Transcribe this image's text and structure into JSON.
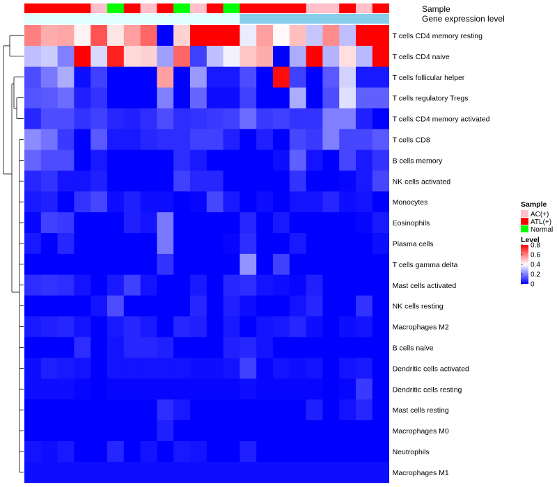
{
  "chart_data": {
    "type": "heatmap",
    "title": "",
    "value_range": [
      0,
      0.8
    ],
    "annotation_tracks": [
      {
        "name": "Sample",
        "values": [
          "ATL(+)",
          "ATL(+)",
          "ATL(+)",
          "ATL(+)",
          "AC(+)",
          "Normal",
          "ATL(+)",
          "AC(+)",
          "ATL(+)",
          "Normal",
          "AC(+)",
          "ATL(+)",
          "Normal",
          "ATL(+)",
          "ATL(+)",
          "ATL(+)",
          "ATL(+)",
          "AC(+)",
          "AC(+)",
          "ATL(+)",
          "AC(+)",
          "ATL(+)"
        ]
      },
      {
        "name": "Gene expression level",
        "values": [
          "low",
          "low",
          "low",
          "low",
          "low",
          "low",
          "low",
          "low",
          "low",
          "low",
          "low",
          "low",
          "low",
          "high",
          "high",
          "high",
          "high",
          "high",
          "high",
          "high",
          "high",
          "high"
        ]
      }
    ],
    "track_colors": {
      "Sample": {
        "AC(+)": "#FFC0CB",
        "ATL(+)": "#FF0000",
        "Normal": "#00FF00"
      },
      "Gene expression level": {
        "low": "#E0FFFF",
        "high": "#87CEEB"
      }
    },
    "rows": [
      "T cells CD4 memory resting",
      "T cells CD4 naive",
      "T cells follicular helper",
      "T cells regulatory  Tregs",
      "T cells CD4 memory activated",
      "T cells CD8",
      "B cells memory",
      "NK cells activated",
      "Monocytes",
      "Eosinophils",
      "Plasma cells",
      "T cells gamma delta",
      "Mast cells activated",
      "NK cells resting",
      "Macrophages M2",
      "B cells naive",
      "Dendritic cells activated",
      "Dendritic cells resting",
      "Mast cells resting",
      "Macrophages M0",
      "Neutrophils",
      "Macrophages M1"
    ],
    "values": [
      [
        0.6,
        0.53,
        0.54,
        0.42,
        0.67,
        0.44,
        0.55,
        0.64,
        0.0,
        0.47,
        0.8,
        0.8,
        0.8,
        0.37,
        0.55,
        0.41,
        0.5,
        0.31,
        0.58,
        0.3,
        0.8,
        0.8
      ],
      [
        0.3,
        0.32,
        0.2,
        0.8,
        0.34,
        0.75,
        0.46,
        0.47,
        0.25,
        0.64,
        0.1,
        0.3,
        0.38,
        0.49,
        0.53,
        0.0,
        0.27,
        0.8,
        0.28,
        0.45,
        0.29,
        0.8
      ],
      [
        0.12,
        0.19,
        0.27,
        0.02,
        0.1,
        0.0,
        0.0,
        0.0,
        0.55,
        0.0,
        0.24,
        0.04,
        0.04,
        0.12,
        0.0,
        0.78,
        0.1,
        0.0,
        0.14,
        0.33,
        0.04,
        0.04
      ],
      [
        0.13,
        0.14,
        0.17,
        0.05,
        0.08,
        0.0,
        0.0,
        0.0,
        0.2,
        0.0,
        0.16,
        0.02,
        0.02,
        0.1,
        0.0,
        0.0,
        0.27,
        0.0,
        0.12,
        0.35,
        0.15,
        0.15
      ],
      [
        0.06,
        0.12,
        0.12,
        0.08,
        0.1,
        0.06,
        0.05,
        0.07,
        0.12,
        0.07,
        0.08,
        0.09,
        0.1,
        0.17,
        0.09,
        0.1,
        0.08,
        0.08,
        0.2,
        0.2,
        0.05,
        0.0
      ],
      [
        0.22,
        0.18,
        0.09,
        0.0,
        0.14,
        0.04,
        0.04,
        0.06,
        0.07,
        0.07,
        0.1,
        0.1,
        0.05,
        0.0,
        0.05,
        0.0,
        0.11,
        0.09,
        0.2,
        0.11,
        0.11,
        0.14
      ],
      [
        0.16,
        0.12,
        0.12,
        0.0,
        0.04,
        0.0,
        0.0,
        0.0,
        0.0,
        0.07,
        0.04,
        0.0,
        0.0,
        0.0,
        0.0,
        0.02,
        0.15,
        0.03,
        0.0,
        0.11,
        0.04,
        0.08
      ],
      [
        0.06,
        0.08,
        0.03,
        0.03,
        0.05,
        0.0,
        0.0,
        0.0,
        0.0,
        0.1,
        0.06,
        0.06,
        0.0,
        0.0,
        0.0,
        0.0,
        0.08,
        0.0,
        0.0,
        0.01,
        0.04,
        0.11
      ],
      [
        0.04,
        0.05,
        0.0,
        0.08,
        0.11,
        0.02,
        0.05,
        0.02,
        0.02,
        0.0,
        0.01,
        0.11,
        0.04,
        0.0,
        0.02,
        0.0,
        0.03,
        0.03,
        0.06,
        0.02,
        0.03,
        0.0
      ],
      [
        0.01,
        0.1,
        0.09,
        0.0,
        0.0,
        0.0,
        0.05,
        0.03,
        0.19,
        0.0,
        0.0,
        0.0,
        0.0,
        0.06,
        0.0,
        0.04,
        0.0,
        0.0,
        0.0,
        0.0,
        0.01,
        0.04
      ],
      [
        0.04,
        0.0,
        0.06,
        0.0,
        0.0,
        0.0,
        0.0,
        0.0,
        0.19,
        0.0,
        0.0,
        0.0,
        0.01,
        0.07,
        0.0,
        0.0,
        0.04,
        0.0,
        0.0,
        0.0,
        0.0,
        0.02
      ],
      [
        0.0,
        0.0,
        0.0,
        0.0,
        0.0,
        0.0,
        0.0,
        0.0,
        0.08,
        0.0,
        0.0,
        0.0,
        0.0,
        0.23,
        0.0,
        0.1,
        0.0,
        0.0,
        0.0,
        0.0,
        0.0,
        0.0
      ],
      [
        0.07,
        0.08,
        0.07,
        0.03,
        0.0,
        0.04,
        0.1,
        0.03,
        0.0,
        0.0,
        0.04,
        0.0,
        0.06,
        0.07,
        0.03,
        0.02,
        0.01,
        0.05,
        0.0,
        0.0,
        0.0,
        0.0
      ],
      [
        0.0,
        0.0,
        0.0,
        0.0,
        0.03,
        0.12,
        0.0,
        0.0,
        0.0,
        0.0,
        0.06,
        0.0,
        0.05,
        0.02,
        0.0,
        0.0,
        0.03,
        0.06,
        0.0,
        0.0,
        0.08,
        0.0
      ],
      [
        0.04,
        0.05,
        0.06,
        0.03,
        0.0,
        0.04,
        0.06,
        0.04,
        0.0,
        0.06,
        0.05,
        0.0,
        0.04,
        0.0,
        0.03,
        0.04,
        0.06,
        0.02,
        0.0,
        0.02,
        0.03,
        0.0
      ],
      [
        0.0,
        0.0,
        0.0,
        0.07,
        0.0,
        0.03,
        0.06,
        0.06,
        0.05,
        0.0,
        0.0,
        0.0,
        0.05,
        0.06,
        0.03,
        0.0,
        0.0,
        0.0,
        0.0,
        0.0,
        0.0,
        0.0
      ],
      [
        0.02,
        0.05,
        0.04,
        0.03,
        0.0,
        0.03,
        0.03,
        0.03,
        0.03,
        0.03,
        0.02,
        0.02,
        0.03,
        0.1,
        0.01,
        0.03,
        0.02,
        0.03,
        0.0,
        0.03,
        0.04,
        0.0
      ],
      [
        0.02,
        0.02,
        0.02,
        0.01,
        0.0,
        0.01,
        0.01,
        0.01,
        0.01,
        0.01,
        0.01,
        0.01,
        0.01,
        0.02,
        0.01,
        0.01,
        0.01,
        0.01,
        0.0,
        0.01,
        0.09,
        0.0
      ],
      [
        0.0,
        0.0,
        0.0,
        0.0,
        0.0,
        0.0,
        0.0,
        0.0,
        0.07,
        0.04,
        0.0,
        0.0,
        0.0,
        0.0,
        0.0,
        0.0,
        0.0,
        0.05,
        0.0,
        0.03,
        0.06,
        0.0
      ],
      [
        0.0,
        0.0,
        0.0,
        0.0,
        0.0,
        0.0,
        0.0,
        0.0,
        0.05,
        0.0,
        0.0,
        0.0,
        0.0,
        0.0,
        0.0,
        0.0,
        0.0,
        0.0,
        0.0,
        0.0,
        0.0,
        0.0
      ],
      [
        0.03,
        0.02,
        0.04,
        0.0,
        0.0,
        0.06,
        0.0,
        0.03,
        0.0,
        0.04,
        0.03,
        0.0,
        0.0,
        0.05,
        0.0,
        0.0,
        0.0,
        0.0,
        0.0,
        0.0,
        0.0,
        0.0
      ],
      [
        0.02,
        0.02,
        0.02,
        0.02,
        0.02,
        0.02,
        0.02,
        0.02,
        0.02,
        0.02,
        0.02,
        0.02,
        0.02,
        0.02,
        0.02,
        0.02,
        0.02,
        0.02,
        0.02,
        0.02,
        0.02,
        0.02
      ]
    ],
    "row_clustering": "dendrogram-left",
    "legend": {
      "sample_title": "Sample",
      "sample_entries": [
        "AC(+)",
        "ATL(+)",
        "Normal"
      ],
      "level_title": "Level",
      "level_ticks": [
        "0.8",
        "0.6",
        "0.4",
        "0.2",
        "0"
      ],
      "level_tick_values": [
        0.8,
        0.6,
        0.4,
        0.2,
        0
      ],
      "placement": "right"
    },
    "color_scale": {
      "low": "#0000FF",
      "mid": "#FFFFFF",
      "high": "#FF0000",
      "mid_value": 0.4
    }
  }
}
